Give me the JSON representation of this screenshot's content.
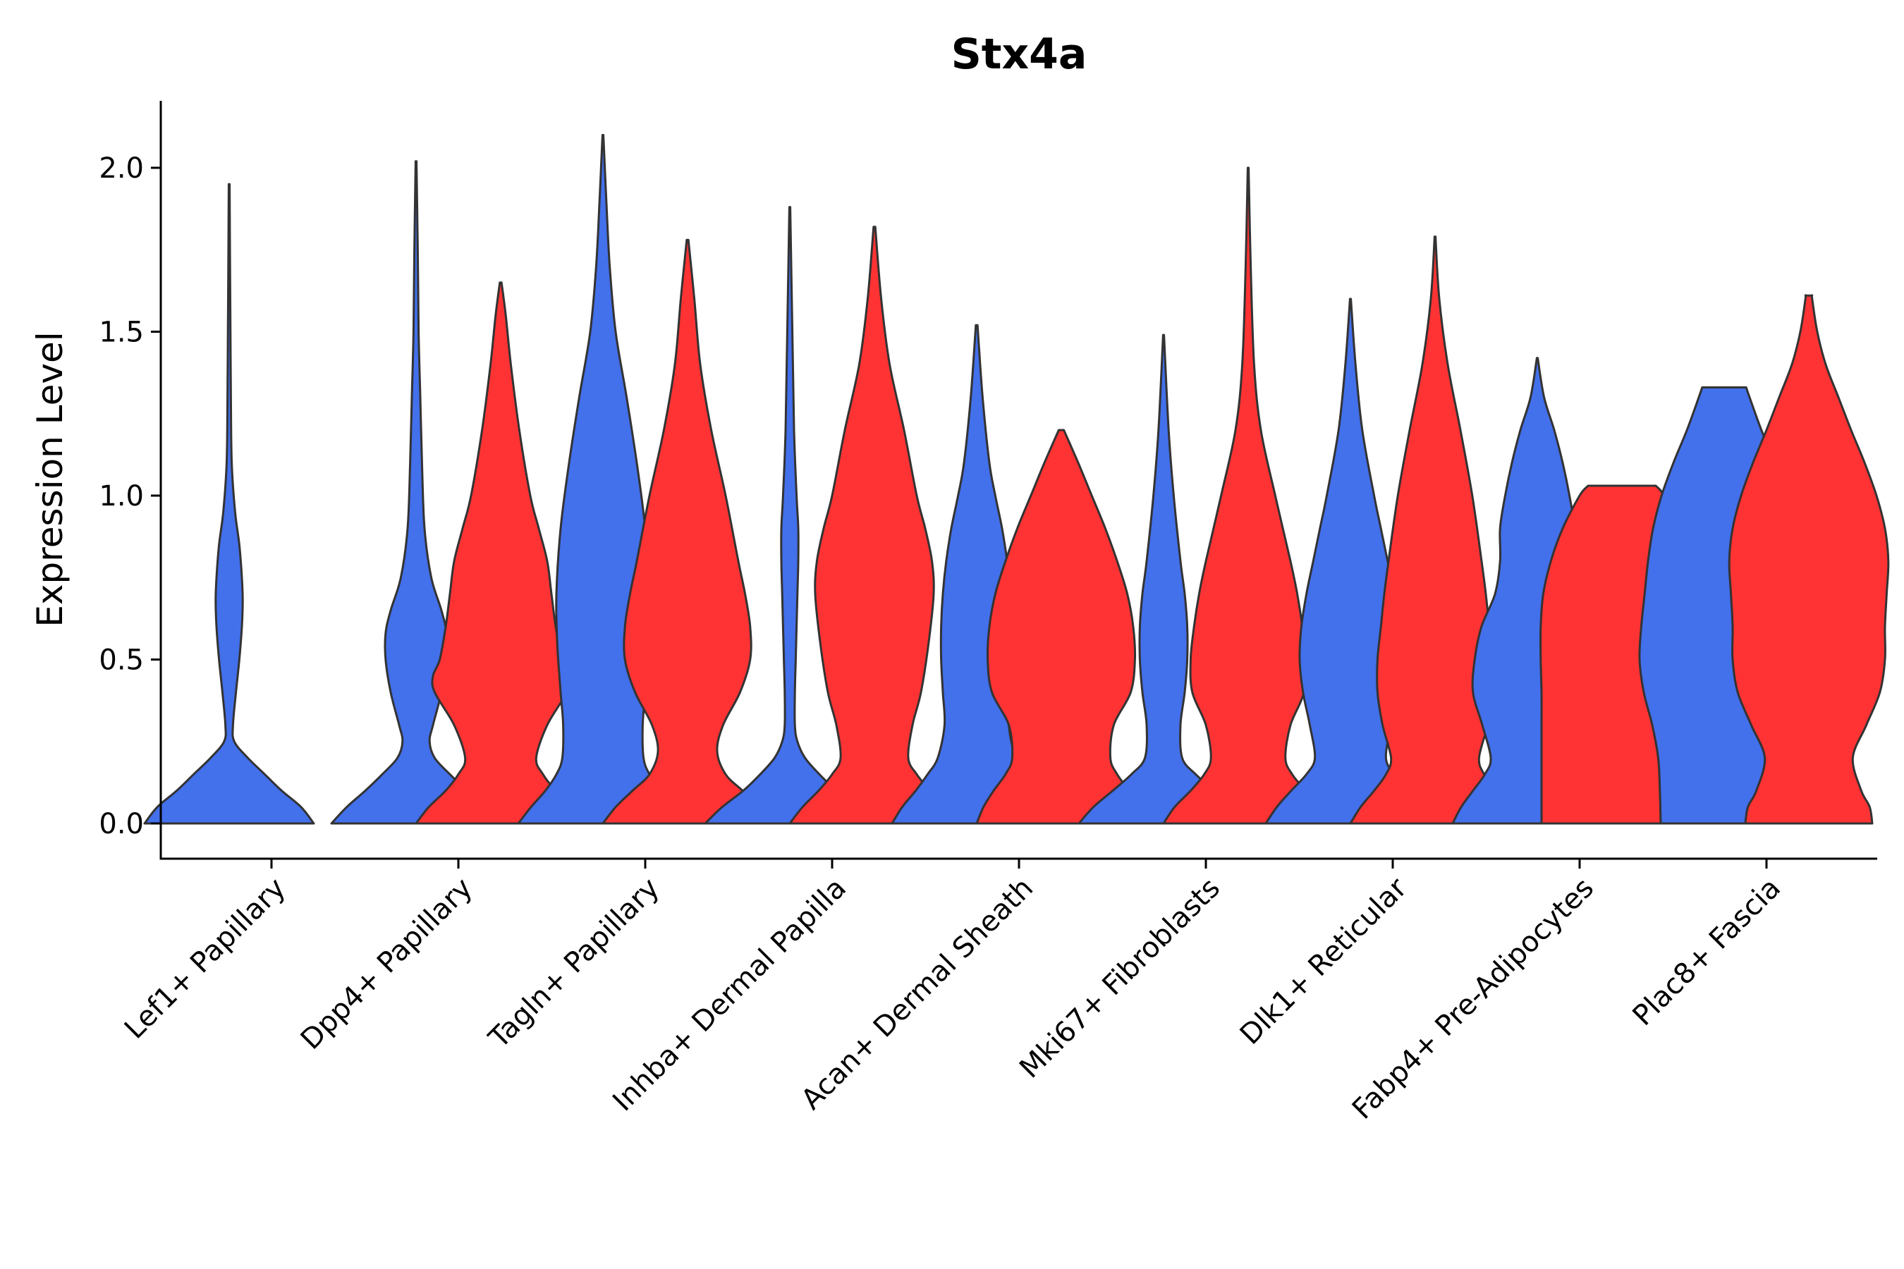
{
  "chart_data": {
    "type": "violin",
    "title": "Stx4a",
    "xlabel": "",
    "ylabel": "Expression Level",
    "ylim": [
      -0.1,
      2.2
    ],
    "yticks": [
      0.0,
      0.5,
      1.0,
      1.5,
      2.0
    ],
    "ytick_labels": [
      "0.0",
      "0.5",
      "1.0",
      "1.5",
      "2.0"
    ],
    "grid": false,
    "colors": {
      "group_a": "#4370eb",
      "group_b": "#ff3333",
      "outline": "#333333"
    },
    "categories": [
      "Lef1+ Papillary",
      "Dpp4+ Papillary",
      "Tagln+ Papillary",
      "Inhba+ Dermal Papilla",
      "Acan+ Dermal Sheath",
      "Mki67+ Fibroblasts",
      "Dlk1+ Reticular",
      "Fabp4+ Pre-Adipocytes",
      "Plac8+ Fascia"
    ],
    "violins": [
      {
        "category": 0,
        "group": "a",
        "max": 1.95,
        "profile": [
          [
            0,
            1.0
          ],
          [
            0.05,
            0.85
          ],
          [
            0.1,
            0.62
          ],
          [
            0.15,
            0.42
          ],
          [
            0.2,
            0.22
          ],
          [
            0.25,
            0.06
          ],
          [
            0.3,
            0.045
          ],
          [
            0.4,
            0.08
          ],
          [
            0.5,
            0.12
          ],
          [
            0.6,
            0.15
          ],
          [
            0.68,
            0.16
          ],
          [
            0.75,
            0.15
          ],
          [
            0.85,
            0.12
          ],
          [
            0.95,
            0.07
          ],
          [
            1.1,
            0.03
          ],
          [
            1.3,
            0.02
          ],
          [
            1.5,
            0.015
          ],
          [
            1.7,
            0.01
          ],
          [
            1.95,
            0.005
          ]
        ]
      },
      {
        "category": 1,
        "group": "a",
        "max": 2.02,
        "profile": [
          [
            0,
            1.0
          ],
          [
            0.05,
            0.82
          ],
          [
            0.1,
            0.6
          ],
          [
            0.15,
            0.4
          ],
          [
            0.2,
            0.22
          ],
          [
            0.25,
            0.16
          ],
          [
            0.3,
            0.2
          ],
          [
            0.4,
            0.3
          ],
          [
            0.5,
            0.36
          ],
          [
            0.58,
            0.36
          ],
          [
            0.65,
            0.3
          ],
          [
            0.75,
            0.18
          ],
          [
            0.9,
            0.1
          ],
          [
            1.1,
            0.07
          ],
          [
            1.3,
            0.05
          ],
          [
            1.5,
            0.03
          ],
          [
            1.75,
            0.02
          ],
          [
            2.02,
            0.005
          ]
        ]
      },
      {
        "category": 1,
        "group": "b",
        "max": 1.65,
        "profile": [
          [
            0,
            1.0
          ],
          [
            0.05,
            0.85
          ],
          [
            0.1,
            0.65
          ],
          [
            0.15,
            0.5
          ],
          [
            0.2,
            0.42
          ],
          [
            0.3,
            0.55
          ],
          [
            0.4,
            0.78
          ],
          [
            0.45,
            0.8
          ],
          [
            0.5,
            0.72
          ],
          [
            0.6,
            0.65
          ],
          [
            0.7,
            0.6
          ],
          [
            0.8,
            0.55
          ],
          [
            0.9,
            0.45
          ],
          [
            1.0,
            0.35
          ],
          [
            1.2,
            0.22
          ],
          [
            1.4,
            0.12
          ],
          [
            1.55,
            0.06
          ],
          [
            1.65,
            0.01
          ]
        ]
      },
      {
        "category": 2,
        "group": "a",
        "max": 2.1,
        "profile": [
          [
            0,
            1.0
          ],
          [
            0.05,
            0.85
          ],
          [
            0.1,
            0.68
          ],
          [
            0.15,
            0.55
          ],
          [
            0.2,
            0.48
          ],
          [
            0.3,
            0.47
          ],
          [
            0.4,
            0.5
          ],
          [
            0.55,
            0.54
          ],
          [
            0.7,
            0.55
          ],
          [
            0.9,
            0.5
          ],
          [
            1.1,
            0.4
          ],
          [
            1.3,
            0.28
          ],
          [
            1.5,
            0.15
          ],
          [
            1.7,
            0.08
          ],
          [
            1.9,
            0.04
          ],
          [
            2.1,
            0.005
          ]
        ]
      },
      {
        "category": 2,
        "group": "b",
        "max": 1.78,
        "profile": [
          [
            0,
            1.0
          ],
          [
            0.05,
            0.85
          ],
          [
            0.1,
            0.65
          ],
          [
            0.15,
            0.45
          ],
          [
            0.22,
            0.35
          ],
          [
            0.3,
            0.42
          ],
          [
            0.4,
            0.62
          ],
          [
            0.5,
            0.74
          ],
          [
            0.6,
            0.74
          ],
          [
            0.7,
            0.68
          ],
          [
            0.8,
            0.6
          ],
          [
            1.0,
            0.45
          ],
          [
            1.2,
            0.28
          ],
          [
            1.4,
            0.15
          ],
          [
            1.6,
            0.08
          ],
          [
            1.78,
            0.01
          ]
        ]
      },
      {
        "category": 3,
        "group": "a",
        "max": 1.88,
        "profile": [
          [
            0,
            1.0
          ],
          [
            0.05,
            0.8
          ],
          [
            0.1,
            0.55
          ],
          [
            0.15,
            0.35
          ],
          [
            0.2,
            0.18
          ],
          [
            0.25,
            0.09
          ],
          [
            0.3,
            0.06
          ],
          [
            0.4,
            0.06
          ],
          [
            0.5,
            0.07
          ],
          [
            0.6,
            0.08
          ],
          [
            0.7,
            0.09
          ],
          [
            0.8,
            0.1
          ],
          [
            0.9,
            0.1
          ],
          [
            1.0,
            0.08
          ],
          [
            1.2,
            0.05
          ],
          [
            1.5,
            0.03
          ],
          [
            1.88,
            0.005
          ]
        ]
      },
      {
        "category": 3,
        "group": "b",
        "max": 1.82,
        "profile": [
          [
            0,
            1.0
          ],
          [
            0.05,
            0.85
          ],
          [
            0.1,
            0.66
          ],
          [
            0.15,
            0.5
          ],
          [
            0.2,
            0.4
          ],
          [
            0.3,
            0.45
          ],
          [
            0.4,
            0.55
          ],
          [
            0.55,
            0.64
          ],
          [
            0.7,
            0.7
          ],
          [
            0.8,
            0.68
          ],
          [
            0.9,
            0.6
          ],
          [
            1.0,
            0.5
          ],
          [
            1.2,
            0.35
          ],
          [
            1.4,
            0.18
          ],
          [
            1.6,
            0.08
          ],
          [
            1.82,
            0.01
          ]
        ]
      },
      {
        "category": 4,
        "group": "a",
        "max": 1.52,
        "profile": [
          [
            0,
            1.0
          ],
          [
            0.05,
            0.88
          ],
          [
            0.1,
            0.72
          ],
          [
            0.15,
            0.58
          ],
          [
            0.2,
            0.46
          ],
          [
            0.3,
            0.38
          ],
          [
            0.4,
            0.4
          ],
          [
            0.5,
            0.42
          ],
          [
            0.6,
            0.42
          ],
          [
            0.7,
            0.4
          ],
          [
            0.8,
            0.36
          ],
          [
            0.9,
            0.3
          ],
          [
            1.0,
            0.22
          ],
          [
            1.1,
            0.15
          ],
          [
            1.3,
            0.07
          ],
          [
            1.52,
            0.01
          ]
        ]
      },
      {
        "category": 4,
        "group": "b",
        "max": 1.2,
        "profile": [
          [
            0,
            1.0
          ],
          [
            0.05,
            0.92
          ],
          [
            0.1,
            0.8
          ],
          [
            0.15,
            0.66
          ],
          [
            0.2,
            0.58
          ],
          [
            0.3,
            0.62
          ],
          [
            0.4,
            0.82
          ],
          [
            0.5,
            0.87
          ],
          [
            0.6,
            0.85
          ],
          [
            0.7,
            0.78
          ],
          [
            0.8,
            0.66
          ],
          [
            0.9,
            0.52
          ],
          [
            1.0,
            0.36
          ],
          [
            1.1,
            0.2
          ],
          [
            1.2,
            0.03
          ]
        ]
      },
      {
        "category": 5,
        "group": "a",
        "max": 1.49,
        "profile": [
          [
            0,
            1.0
          ],
          [
            0.05,
            0.83
          ],
          [
            0.1,
            0.6
          ],
          [
            0.15,
            0.38
          ],
          [
            0.2,
            0.22
          ],
          [
            0.3,
            0.2
          ],
          [
            0.4,
            0.25
          ],
          [
            0.5,
            0.28
          ],
          [
            0.6,
            0.28
          ],
          [
            0.7,
            0.25
          ],
          [
            0.8,
            0.2
          ],
          [
            1.0,
            0.12
          ],
          [
            1.2,
            0.06
          ],
          [
            1.49,
            0.005
          ]
        ]
      },
      {
        "category": 5,
        "group": "b",
        "max": 2.0,
        "profile": [
          [
            0,
            1.0
          ],
          [
            0.05,
            0.87
          ],
          [
            0.1,
            0.68
          ],
          [
            0.15,
            0.52
          ],
          [
            0.2,
            0.44
          ],
          [
            0.3,
            0.5
          ],
          [
            0.4,
            0.66
          ],
          [
            0.5,
            0.68
          ],
          [
            0.6,
            0.64
          ],
          [
            0.7,
            0.58
          ],
          [
            0.8,
            0.5
          ],
          [
            1.0,
            0.32
          ],
          [
            1.2,
            0.15
          ],
          [
            1.4,
            0.07
          ],
          [
            1.7,
            0.03
          ],
          [
            2.0,
            0.005
          ]
        ]
      },
      {
        "category": 6,
        "group": "a",
        "max": 1.6,
        "profile": [
          [
            0,
            1.0
          ],
          [
            0.05,
            0.87
          ],
          [
            0.1,
            0.7
          ],
          [
            0.15,
            0.52
          ],
          [
            0.2,
            0.42
          ],
          [
            0.3,
            0.48
          ],
          [
            0.4,
            0.56
          ],
          [
            0.5,
            0.6
          ],
          [
            0.6,
            0.58
          ],
          [
            0.7,
            0.52
          ],
          [
            0.8,
            0.44
          ],
          [
            0.9,
            0.36
          ],
          [
            1.0,
            0.28
          ],
          [
            1.2,
            0.14
          ],
          [
            1.4,
            0.06
          ],
          [
            1.6,
            0.005
          ]
        ]
      },
      {
        "category": 6,
        "group": "b",
        "max": 1.79,
        "profile": [
          [
            0,
            1.0
          ],
          [
            0.05,
            0.88
          ],
          [
            0.1,
            0.72
          ],
          [
            0.15,
            0.58
          ],
          [
            0.2,
            0.52
          ],
          [
            0.3,
            0.62
          ],
          [
            0.4,
            0.68
          ],
          [
            0.5,
            0.68
          ],
          [
            0.6,
            0.64
          ],
          [
            0.7,
            0.6
          ],
          [
            0.8,
            0.55
          ],
          [
            1.0,
            0.44
          ],
          [
            1.2,
            0.3
          ],
          [
            1.4,
            0.15
          ],
          [
            1.6,
            0.05
          ],
          [
            1.79,
            0.005
          ]
        ]
      },
      {
        "category": 7,
        "group": "a",
        "max": 1.42,
        "profile": [
          [
            0,
            1.0
          ],
          [
            0.05,
            0.9
          ],
          [
            0.1,
            0.76
          ],
          [
            0.15,
            0.62
          ],
          [
            0.2,
            0.55
          ],
          [
            0.3,
            0.65
          ],
          [
            0.4,
            0.76
          ],
          [
            0.5,
            0.74
          ],
          [
            0.6,
            0.66
          ],
          [
            0.7,
            0.5
          ],
          [
            0.8,
            0.44
          ],
          [
            0.9,
            0.44
          ],
          [
            1.0,
            0.38
          ],
          [
            1.1,
            0.3
          ],
          [
            1.2,
            0.2
          ],
          [
            1.3,
            0.08
          ],
          [
            1.42,
            0.005
          ]
        ]
      },
      {
        "category": 7,
        "group": "b",
        "max": 1.03,
        "flat_top": true,
        "profile": [
          [
            0,
            0.95
          ],
          [
            0.1,
            0.95
          ],
          [
            0.2,
            0.95
          ],
          [
            0.3,
            0.95
          ],
          [
            0.4,
            0.95
          ],
          [
            0.5,
            0.96
          ],
          [
            0.6,
            0.96
          ],
          [
            0.7,
            0.93
          ],
          [
            0.8,
            0.84
          ],
          [
            0.9,
            0.7
          ],
          [
            1.0,
            0.5
          ],
          [
            1.03,
            0.4
          ]
        ]
      },
      {
        "category": 8,
        "group": "a",
        "max": 1.33,
        "flat_top": true,
        "profile": [
          [
            0,
            0.75
          ],
          [
            0.1,
            0.76
          ],
          [
            0.2,
            0.78
          ],
          [
            0.3,
            0.85
          ],
          [
            0.4,
            0.95
          ],
          [
            0.5,
            1.0
          ],
          [
            0.6,
            0.98
          ],
          [
            0.7,
            0.94
          ],
          [
            0.8,
            0.9
          ],
          [
            0.9,
            0.84
          ],
          [
            1.0,
            0.74
          ],
          [
            1.1,
            0.6
          ],
          [
            1.2,
            0.44
          ],
          [
            1.3,
            0.3
          ],
          [
            1.33,
            0.26
          ]
        ]
      },
      {
        "category": 8,
        "group": "b",
        "max": 1.61,
        "flat_top": true,
        "profile": [
          [
            0,
            0.75
          ],
          [
            0.05,
            0.72
          ],
          [
            0.1,
            0.62
          ],
          [
            0.2,
            0.52
          ],
          [
            0.3,
            0.68
          ],
          [
            0.4,
            0.84
          ],
          [
            0.5,
            0.9
          ],
          [
            0.6,
            0.9
          ],
          [
            0.7,
            0.92
          ],
          [
            0.8,
            0.94
          ],
          [
            0.9,
            0.9
          ],
          [
            1.0,
            0.8
          ],
          [
            1.1,
            0.66
          ],
          [
            1.2,
            0.5
          ],
          [
            1.3,
            0.35
          ],
          [
            1.4,
            0.2
          ],
          [
            1.5,
            0.1
          ],
          [
            1.6,
            0.04
          ],
          [
            1.61,
            0.04
          ]
        ]
      }
    ]
  }
}
